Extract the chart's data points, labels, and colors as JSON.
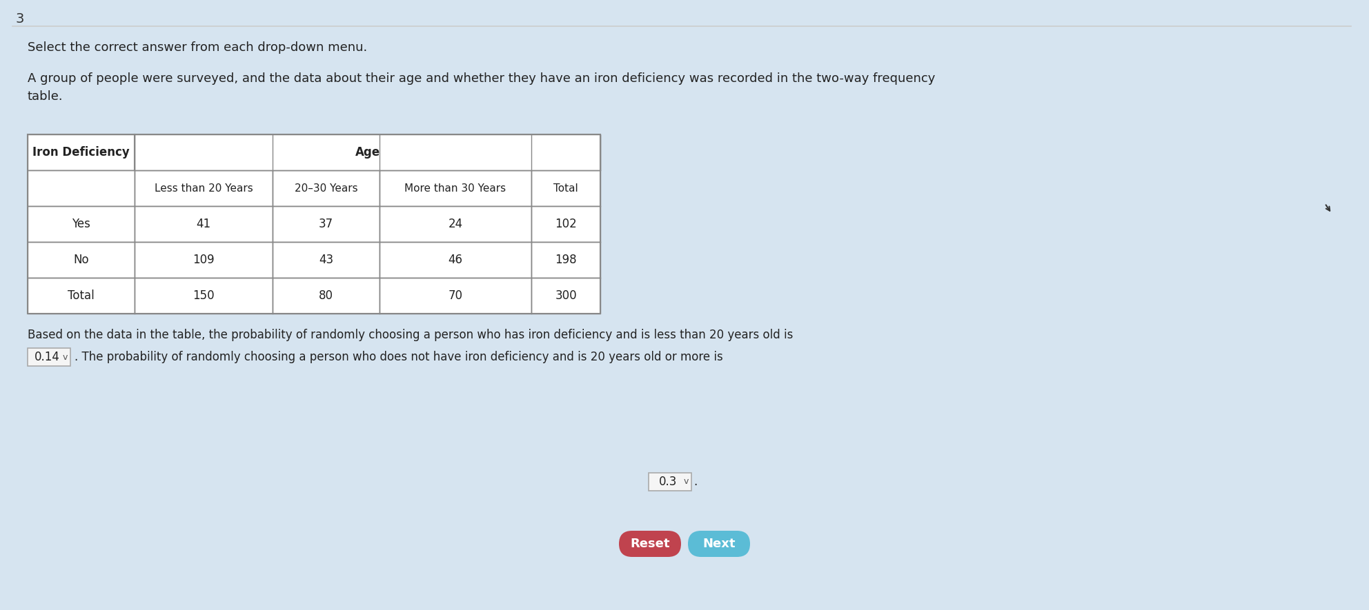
{
  "bg_color": "#d6e4f0",
  "page_bg": "#f0f0f0",
  "title_number": "3",
  "instruction": "Select the correct answer from each drop-down menu.",
  "description": "A group of people were surveyed, and the data about their age and whether they have an iron deficiency was recorded in the two-way frequency\ntable.",
  "table": {
    "col_headers": [
      "Iron Deficiency",
      "Less than 20 Years",
      "20–30 Years",
      "More than 30 Years",
      "Total"
    ],
    "age_header": "Age",
    "rows": [
      [
        "Yes",
        "41",
        "37",
        "24",
        "102"
      ],
      [
        "No",
        "109",
        "43",
        "46",
        "198"
      ],
      [
        "Total",
        "150",
        "80",
        "70",
        "300"
      ]
    ]
  },
  "paragraph": "Based on the data in the table, the probability of randomly choosing a person who has iron deficiency and is less than 20 years old is",
  "dropdown1_value": "0.14",
  "dropdown1_arrow": "✓",
  "middle_text": ". The probability of randomly choosing a person who does not have iron deficiency and is 20 years old or more is",
  "dropdown2_value": "0.3",
  "dropdown2_arrow": "✓",
  "end_text": ".",
  "reset_label": "Reset",
  "next_label": "Next",
  "reset_color": "#c0434e",
  "next_color": "#5bbcd6",
  "reset_text_color": "#ffffff",
  "next_text_color": "#ffffff",
  "dropdown_bg": "#f5f5f5",
  "dropdown_border": "#aaaaaa",
  "table_border": "#888888",
  "header_bg": "#ffffff",
  "cell_bg": "#ffffff",
  "total_col_bg": "#f5f5f5"
}
